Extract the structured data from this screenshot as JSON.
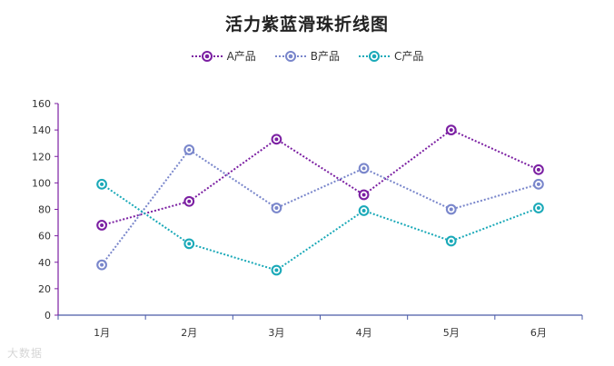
{
  "chart_data": {
    "type": "line",
    "title": "活力紫蓝滑珠折线图",
    "categories": [
      "1月",
      "2月",
      "3月",
      "4月",
      "5月",
      "6月"
    ],
    "series": [
      {
        "name": "A产品",
        "values": [
          68,
          86,
          133,
          91,
          140,
          110
        ],
        "color": "#7b1fa2"
      },
      {
        "name": "B产品",
        "values": [
          38,
          125,
          81,
          111,
          80,
          99
        ],
        "color": "#7986cb"
      },
      {
        "name": "C产品",
        "values": [
          99,
          54,
          34,
          79,
          56,
          81
        ],
        "color": "#1aa9b8"
      }
    ],
    "xlabel": "",
    "ylabel": "",
    "ylim": [
      0,
      160
    ],
    "yticks": [
      0,
      20,
      40,
      60,
      80,
      100,
      120,
      140,
      160
    ],
    "grid": false,
    "legend_position": "top",
    "line_style": "dotted",
    "marker": "ringed bead"
  },
  "watermark": "大数据"
}
